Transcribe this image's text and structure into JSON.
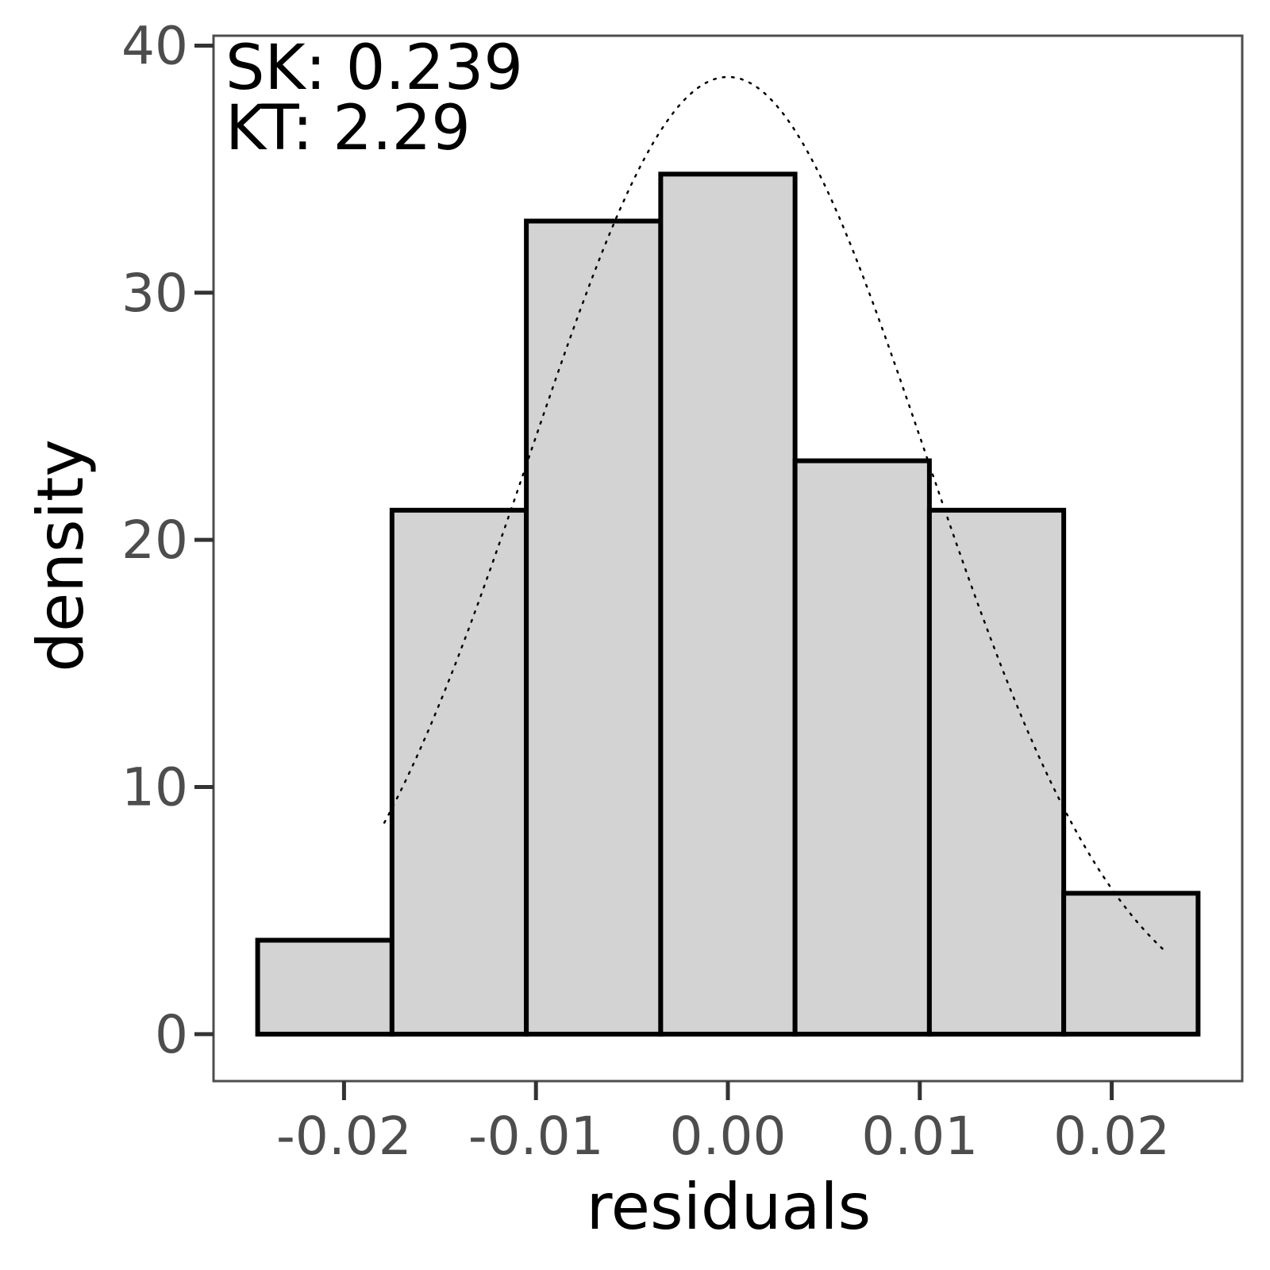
{
  "chart_data": {
    "type": "bar",
    "subtype": "histogram",
    "xlabel": "residuals",
    "ylabel": "density",
    "xlim": [
      -0.0268,
      0.0268
    ],
    "ylim": [
      -1.9,
      40.4
    ],
    "x_ticks": [
      -0.02,
      -0.01,
      0.0,
      0.01,
      0.02
    ],
    "x_tick_labels": [
      "-0.02",
      "-0.01",
      "0.00",
      "0.01",
      "0.02"
    ],
    "y_ticks": [
      0,
      10,
      20,
      30,
      40
    ],
    "y_tick_labels": [
      "0",
      "10",
      "20",
      "30",
      "40"
    ],
    "bins": [
      {
        "x0": -0.0245,
        "x1": -0.0175,
        "density": 3.8
      },
      {
        "x0": -0.0175,
        "x1": -0.0105,
        "density": 21.2
      },
      {
        "x0": -0.0105,
        "x1": -0.0035,
        "density": 32.9
      },
      {
        "x0": -0.0035,
        "x1": 0.0035,
        "density": 34.8
      },
      {
        "x0": 0.0035,
        "x1": 0.0105,
        "density": 23.2
      },
      {
        "x0": 0.0105,
        "x1": 0.0175,
        "density": 21.2
      },
      {
        "x0": 0.0175,
        "x1": 0.0245,
        "density": 5.7
      }
    ],
    "normal_curve": {
      "mean": 0.0,
      "sd": 0.0103,
      "x_range": [
        -0.0179,
        0.0229
      ],
      "style": "dotted"
    },
    "annotations": [
      "SK: 0.239",
      "KT: 2.29"
    ],
    "grid": false,
    "colors": {
      "bar_fill": "#d3d3d3",
      "bar_stroke": "#000000",
      "panel_border": "#4d4d4d",
      "tick_text": "#4d4d4d"
    }
  }
}
